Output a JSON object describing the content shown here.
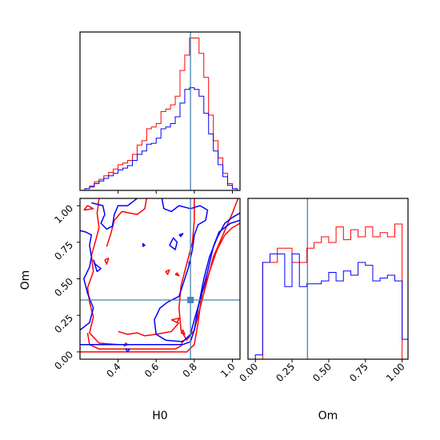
{
  "chart_data": {
    "type": "corner",
    "parameters": [
      "H0",
      "Om"
    ],
    "truth": {
      "H0": 0.78,
      "Om": 0.355
    },
    "truth_color": "#4682b4",
    "series": [
      {
        "color": "#ff0000"
      },
      {
        "color": "#0000ff"
      }
    ],
    "panels": [
      {
        "id": "hist-H0",
        "type": "step-histogram",
        "xlim": [
          0.2,
          1.04
        ],
        "bin_edges": [
          0.225,
          0.25,
          0.275,
          0.3,
          0.325,
          0.35,
          0.375,
          0.4,
          0.425,
          0.45,
          0.475,
          0.5,
          0.525,
          0.55,
          0.575,
          0.6,
          0.625,
          0.65,
          0.675,
          0.7,
          0.725,
          0.75,
          0.775,
          0.8,
          0.825,
          0.85,
          0.875,
          0.9,
          0.925,
          0.95,
          0.975,
          1.0,
          1.025
        ],
        "ylim": [
          0,
          185
        ],
        "counts": [
          [
            2,
            5,
            10,
            13,
            17,
            21,
            25,
            30,
            32,
            35,
            42,
            53,
            58,
            72,
            74,
            78,
            92,
            95,
            100,
            110,
            140,
            158,
            178,
            178,
            160,
            132,
            88,
            58,
            38,
            20,
            8,
            2
          ],
          [
            2,
            4,
            8,
            11,
            14,
            17,
            20,
            24,
            26,
            29,
            35,
            42,
            46,
            54,
            55,
            61,
            72,
            74,
            78,
            86,
            102,
            118,
            120,
            118,
            110,
            90,
            66,
            46,
            30,
            16,
            6,
            2
          ]
        ],
        "x_ticks": [
          0.4,
          0.6,
          0.8,
          1.0
        ]
      },
      {
        "id": "contour-H0-Om",
        "type": "contour",
        "xlim": [
          0.2,
          1.04
        ],
        "ylim": [
          -0.05,
          1.05
        ],
        "x_ticks": [
          0.4,
          0.6,
          0.8,
          1.0
        ],
        "x_tick_labels": [
          "0.4",
          "0.6",
          "0.8",
          "1.0"
        ],
        "y_ticks": [
          0.0,
          0.25,
          0.5,
          0.75,
          1.0
        ],
        "y_tick_labels": [
          "0.00",
          "0.25",
          "0.50",
          "0.75",
          "1.00"
        ],
        "xlabel": "H0",
        "ylabel": "Om",
        "contours": [
          [
            [
              [
                0.2,
                0.0
              ],
              [
                0.76,
                0.0
              ],
              [
                0.8,
                0.05
              ],
              [
                0.82,
                0.2
              ],
              [
                0.84,
                0.4
              ],
              [
                0.88,
                0.55
              ],
              [
                0.92,
                0.7
              ],
              [
                0.96,
                0.8
              ],
              [
                1.0,
                0.85
              ],
              [
                1.04,
                0.88
              ]
            ],
            [
              [
                0.8,
                1.05
              ],
              [
                0.8,
                0.9
              ],
              [
                0.79,
                0.75
              ],
              [
                0.76,
                0.6
              ],
              [
                0.73,
                0.45
              ],
              [
                0.72,
                0.3
              ],
              [
                0.73,
                0.15
              ],
              [
                0.76,
                0.08
              ],
              [
                0.8,
                0.15
              ],
              [
                0.84,
                0.35
              ],
              [
                0.87,
                0.5
              ],
              [
                0.9,
                0.65
              ],
              [
                0.95,
                0.8
              ],
              [
                1.0,
                0.95
              ],
              [
                1.03,
                1.05
              ]
            ],
            [
              [
                0.3,
                1.05
              ],
              [
                0.29,
                0.95
              ],
              [
                0.3,
                0.85
              ],
              [
                0.28,
                0.75
              ],
              [
                0.26,
                0.66
              ],
              [
                0.27,
                0.55
              ],
              [
                0.24,
                0.44
              ],
              [
                0.25,
                0.34
              ],
              [
                0.27,
                0.24
              ],
              [
                0.25,
                0.13
              ],
              [
                0.3,
                0.06
              ],
              [
                0.4,
                0.05
              ]
            ],
            [
              [
                0.24,
                0.13
              ],
              [
                0.25,
                0.05
              ],
              [
                0.3,
                0.02
              ],
              [
                0.7,
                0.02
              ],
              [
                0.73,
                0.04
              ],
              [
                0.74,
                0.08
              ]
            ],
            [
              [
                0.55,
                1.05
              ],
              [
                0.54,
                0.98
              ],
              [
                0.5,
                0.94
              ],
              [
                0.42,
                0.96
              ],
              [
                0.38,
                0.9
              ],
              [
                0.36,
                0.8
              ],
              [
                0.34,
                0.72
              ]
            ],
            [
              [
                0.2,
                0.03
              ],
              [
                0.2,
                0.02
              ]
            ],
            [
              [
                0.4,
                0.14
              ],
              [
                0.45,
                0.12
              ],
              [
                0.5,
                0.13
              ],
              [
                0.54,
                0.11
              ],
              [
                0.6,
                0.12
              ],
              [
                0.68,
                0.14
              ],
              [
                0.72,
                0.2
              ]
            ],
            [
              [
                0.22,
                0.97
              ],
              [
                0.27,
                0.98
              ],
              [
                0.24,
                1.0
              ],
              [
                0.22,
                0.97
              ]
            ],
            [
              [
                0.33,
                0.63
              ],
              [
                0.35,
                0.64
              ],
              [
                0.34,
                0.6
              ],
              [
                0.33,
                0.63
              ]
            ],
            [
              [
                0.43,
                0.04
              ],
              [
                0.44,
                0.06
              ],
              [
                0.45,
                0.05
              ],
              [
                0.43,
                0.04
              ]
            ],
            [
              [
                0.7,
                0.53
              ],
              [
                0.71,
                0.54
              ],
              [
                0.72,
                0.52
              ],
              [
                0.7,
                0.53
              ]
            ],
            [
              [
                0.68,
                0.22
              ],
              [
                0.72,
                0.23
              ],
              [
                0.71,
                0.2
              ],
              [
                0.68,
                0.22
              ]
            ],
            [
              [
                0.73,
                0.13
              ],
              [
                0.74,
                0.15
              ],
              [
                0.75,
                0.12
              ],
              [
                0.73,
                0.13
              ]
            ],
            [
              [
                0.65,
                0.55
              ],
              [
                0.67,
                0.56
              ],
              [
                0.66,
                0.53
              ],
              [
                0.65,
                0.55
              ]
            ]
          ],
          [
            [
              [
                0.2,
                0.05
              ],
              [
                0.74,
                0.05
              ],
              [
                0.78,
                0.07
              ],
              [
                0.8,
                0.15
              ],
              [
                0.82,
                0.3
              ],
              [
                0.85,
                0.5
              ],
              [
                0.88,
                0.65
              ],
              [
                0.92,
                0.78
              ],
              [
                0.96,
                0.88
              ],
              [
                1.0,
                0.92
              ],
              [
                1.04,
                0.95
              ]
            ],
            [
              [
                0.2,
                0.83
              ],
              [
                0.23,
                0.82
              ],
              [
                0.26,
                0.8
              ],
              [
                0.25,
                0.73
              ],
              [
                0.26,
                0.65
              ],
              [
                0.25,
                0.58
              ],
              [
                0.22,
                0.5
              ],
              [
                0.24,
                0.4
              ],
              [
                0.27,
                0.3
              ],
              [
                0.25,
                0.2
              ],
              [
                0.2,
                0.15
              ]
            ],
            [
              [
                0.26,
                1.02
              ],
              [
                0.32,
                1.0
              ],
              [
                0.33,
                0.94
              ],
              [
                0.31,
                0.88
              ],
              [
                0.34,
                0.84
              ],
              [
                0.37,
                0.86
              ],
              [
                0.38,
                0.94
              ],
              [
                0.4,
                1.0
              ],
              [
                0.45,
                1.0
              ],
              [
                0.48,
                1.03
              ],
              [
                0.5,
                1.05
              ]
            ],
            [
              [
                0.63,
                1.05
              ],
              [
                0.64,
                0.98
              ],
              [
                0.68,
                0.96
              ],
              [
                0.72,
                1.0
              ],
              [
                0.78,
                0.98
              ],
              [
                0.83,
                1.0
              ],
              [
                0.87,
                0.97
              ],
              [
                0.86,
                0.9
              ],
              [
                0.82,
                0.87
              ],
              [
                0.8,
                0.8
              ],
              [
                0.79,
                0.7
              ],
              [
                0.77,
                0.58
              ],
              [
                0.74,
                0.46
              ],
              [
                0.72,
                0.38
              ],
              [
                0.66,
                0.34
              ],
              [
                0.62,
                0.3
              ],
              [
                0.59,
                0.22
              ],
              [
                0.6,
                0.12
              ],
              [
                0.65,
                0.08
              ],
              [
                0.74,
                0.07
              ],
              [
                0.78,
                0.12
              ],
              [
                0.8,
                0.22
              ],
              [
                0.84,
                0.4
              ],
              [
                0.87,
                0.55
              ],
              [
                0.9,
                0.72
              ],
              [
                0.93,
                0.82
              ],
              [
                0.96,
                0.85
              ],
              [
                0.99,
                0.88
              ],
              [
                1.04,
                0.9
              ]
            ],
            [
              [
                0.45,
                0.0
              ],
              [
                0.44,
                0.02
              ],
              [
                0.46,
                0.02
              ],
              [
                0.45,
                0.0
              ]
            ],
            [
              [
                0.27,
                0.63
              ],
              [
                0.29,
                0.55
              ],
              [
                0.31,
                0.57
              ],
              [
                0.28,
                0.6
              ],
              [
                0.27,
                0.63
              ]
            ],
            [
              [
                0.67,
                0.73
              ],
              [
                0.69,
                0.78
              ],
              [
                0.71,
                0.75
              ],
              [
                0.7,
                0.7
              ],
              [
                0.67,
                0.73
              ]
            ],
            [
              [
                0.72,
                0.8
              ],
              [
                0.74,
                0.81
              ],
              [
                0.73,
                0.79
              ],
              [
                0.72,
                0.8
              ]
            ],
            [
              [
                0.77,
                0.61
              ],
              [
                0.78,
                0.62
              ],
              [
                0.78,
                0.6
              ],
              [
                0.77,
                0.61
              ]
            ],
            [
              [
                0.53,
                0.72
              ],
              [
                0.53,
                0.74
              ],
              [
                0.54,
                0.73
              ],
              [
                0.53,
                0.72
              ]
            ]
          ]
        ]
      },
      {
        "id": "hist-Om",
        "type": "step-histogram",
        "xlim": [
          -0.05,
          1.04
        ],
        "bin_edges": [
          0.0,
          0.05,
          0.1,
          0.15,
          0.2,
          0.25,
          0.3,
          0.35,
          0.4,
          0.45,
          0.5,
          0.55,
          0.6,
          0.65,
          0.7,
          0.75,
          0.8,
          0.85,
          0.9,
          0.95,
          1.0,
          1.05
        ],
        "ylim": [
          0,
          1.13
        ],
        "counts": [
          [
            0.0,
            0.68,
            0.68,
            0.78,
            0.78,
            0.68,
            0.68,
            0.78,
            0.82,
            0.86,
            0.82,
            0.93,
            0.84,
            0.91,
            0.86,
            0.93,
            0.86,
            0.89,
            0.86,
            0.95,
            0.0
          ],
          [
            0.03,
            0.68,
            0.74,
            0.74,
            0.51,
            0.74,
            0.51,
            0.53,
            0.53,
            0.55,
            0.61,
            0.55,
            0.62,
            0.59,
            0.68,
            0.66,
            0.55,
            0.57,
            0.59,
            0.55,
            0.14
          ]
        ],
        "x_ticks": [
          0.0,
          0.25,
          0.5,
          0.75,
          1.0
        ],
        "x_tick_labels": [
          "0.00",
          "0.25",
          "0.50",
          "0.75",
          "1.00"
        ],
        "xlabel": "Om"
      }
    ]
  }
}
